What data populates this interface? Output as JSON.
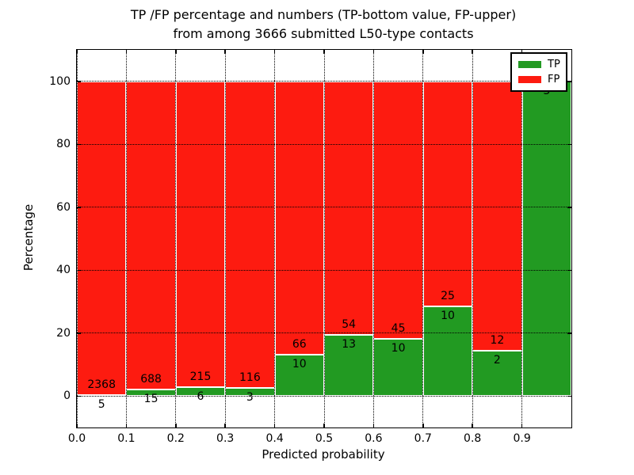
{
  "chart_data": {
    "type": "bar",
    "stacked": true,
    "title_line1": "TP /FP percentage and numbers (TP-bottom value, FP-upper)",
    "title_line2": "from among 3666 submitted L50-type contacts",
    "xlabel": "Predicted probability",
    "ylabel": "Percentage",
    "y_unit": "percent",
    "xlim": [
      0.0,
      1.0
    ],
    "ylim": [
      -10,
      110
    ],
    "x_ticks": [
      "0.0",
      "0.1",
      "0.2",
      "0.3",
      "0.4",
      "0.5",
      "0.6",
      "0.7",
      "0.8",
      "0.9"
    ],
    "y_ticks": [
      "0",
      "20",
      "40",
      "60",
      "80",
      "100"
    ],
    "grid": true,
    "categories": [
      "0.0-0.1",
      "0.1-0.2",
      "0.2-0.3",
      "0.3-0.4",
      "0.4-0.5",
      "0.5-0.6",
      "0.6-0.7",
      "0.7-0.8",
      "0.8-0.9",
      "0.9-1.0"
    ],
    "series": [
      {
        "name": "TP",
        "color": "#229a22",
        "values": [
          5,
          15,
          6,
          3,
          10,
          13,
          10,
          10,
          2,
          3
        ]
      },
      {
        "name": "FP",
        "color": "#fd1b10",
        "values": [
          2368,
          688,
          215,
          116,
          66,
          54,
          45,
          25,
          12,
          0
        ]
      }
    ],
    "bar_edge_color": "#ffffff",
    "text_color": "#000000",
    "legend": {
      "position": "upper right",
      "entries": [
        {
          "label": "TP",
          "color": "#229a22"
        },
        {
          "label": "FP",
          "color": "#fd1b10"
        }
      ]
    }
  }
}
